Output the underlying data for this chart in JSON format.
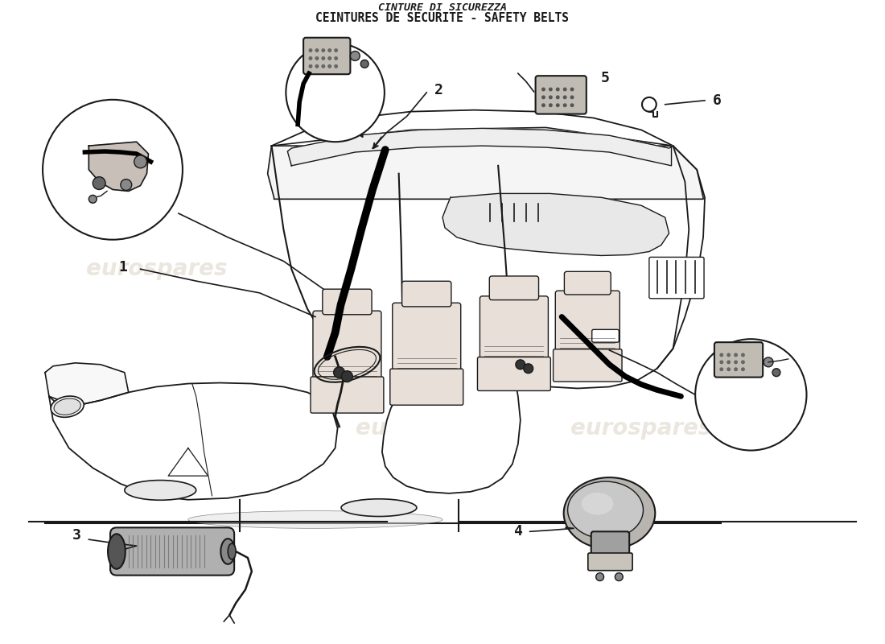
{
  "title_line1": "CINTURE DI SICUREZZA",
  "title_line2": "CEINTURES DE SECURITE - SAFETY BELTS",
  "background_color": "#ffffff",
  "line_color": "#1a1a1a",
  "watermark_text": "eurospares",
  "watermark_color": "#d8d0c0",
  "figsize": [
    11.0,
    8.0
  ],
  "dpi": 100
}
